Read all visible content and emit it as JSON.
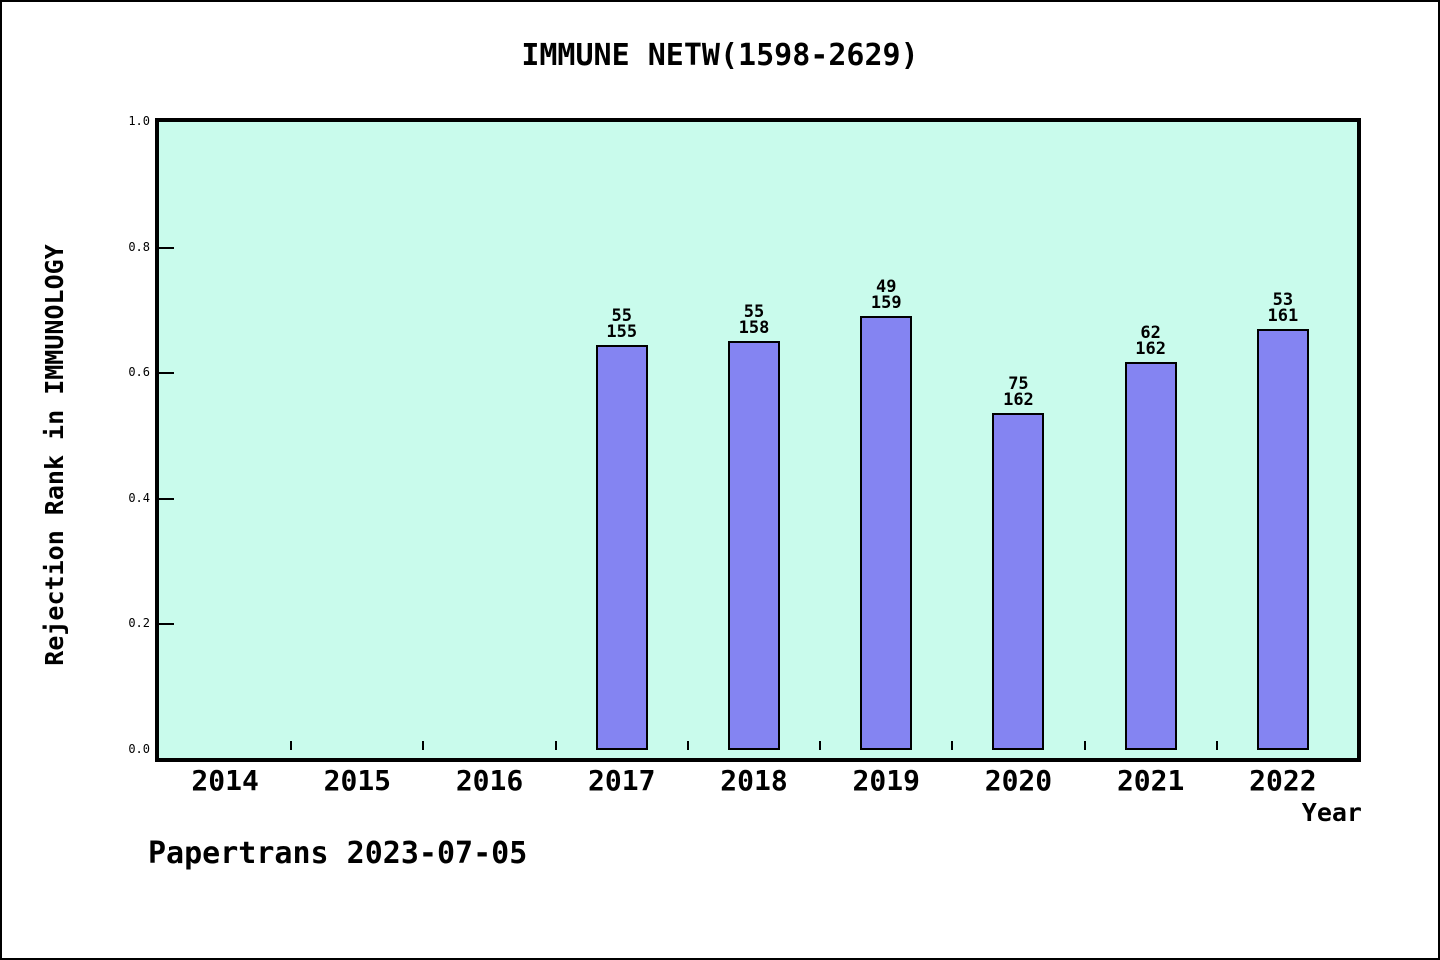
{
  "title": "IMMUNE NETW(1598-2629)",
  "footer": "Papertrans 2023-07-05",
  "colors": {
    "plot_bg": "#c9fbec",
    "bar_fill": "#8484f2",
    "bar_border": "#000000",
    "frame": "#000000"
  },
  "chart_data": {
    "type": "bar",
    "title": "IMMUNE NETW(1598-2629)",
    "xlabel": "Year",
    "ylabel": "Rejection Rank in IMMUNOLOGY",
    "ylim": [
      0.0,
      1.0
    ],
    "grid": false,
    "y_tick_labels": [
      "0.0",
      "0.2",
      "0.4",
      "0.6",
      "0.8",
      "1.0"
    ],
    "y_tick_values": [
      0.0,
      0.2,
      0.4,
      0.6,
      0.8,
      1.0
    ],
    "categories": [
      "2014",
      "2015",
      "2016",
      "2017",
      "2018",
      "2019",
      "2020",
      "2021",
      "2022"
    ],
    "bars": [
      {
        "year": "2014",
        "value": null,
        "label_numerator": "",
        "label_denominator": ""
      },
      {
        "year": "2015",
        "value": null,
        "label_numerator": "",
        "label_denominator": ""
      },
      {
        "year": "2016",
        "value": null,
        "label_numerator": "",
        "label_denominator": ""
      },
      {
        "year": "2017",
        "value": 0.6452,
        "label_numerator": "55",
        "label_denominator": "155"
      },
      {
        "year": "2018",
        "value": 0.6519,
        "label_numerator": "55",
        "label_denominator": "158"
      },
      {
        "year": "2019",
        "value": 0.6918,
        "label_numerator": "49",
        "label_denominator": "159"
      },
      {
        "year": "2020",
        "value": 0.537,
        "label_numerator": "75",
        "label_denominator": "162"
      },
      {
        "year": "2021",
        "value": 0.6173,
        "label_numerator": "62",
        "label_denominator": "162"
      },
      {
        "year": "2022",
        "value": 0.6708,
        "label_numerator": "53",
        "label_denominator": "161"
      }
    ]
  }
}
